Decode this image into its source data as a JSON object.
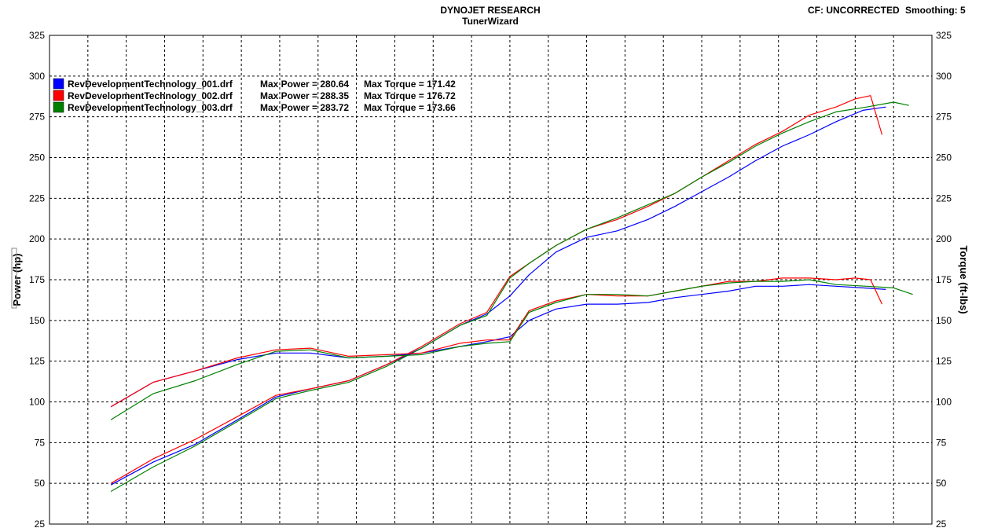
{
  "header": {
    "title_line1": "DYNOJET RESEARCH",
    "title_line2": "TunerWizard",
    "cf_label": "CF: UNCORRECTED",
    "smoothing_label": "Smoothing: 5"
  },
  "chart_data": {
    "type": "line",
    "title": "",
    "ylabel_left": "Power (hp)",
    "ylabel_right": "Torque (ft-lbs)",
    "xlabel": "",
    "ylim": [
      25,
      325
    ],
    "yticks": [
      25,
      50,
      75,
      100,
      125,
      150,
      175,
      200,
      225,
      250,
      275,
      300,
      325
    ],
    "xlim": [
      0,
      23
    ],
    "x_gridlines": 23,
    "grid": true,
    "legend_position": "top-left",
    "legend": [
      {
        "file": "RevDevelopmentTechnology_001.drf",
        "max_power_label": "Max Power = 280.64",
        "max_torque_label": "Max Torque = 171.42",
        "color": "#0000ff"
      },
      {
        "file": "RevDevelopmentTechnology_002.drf",
        "max_power_label": "Max Power = 288.35",
        "max_torque_label": "Max Torque = 176.72",
        "color": "#ff0000"
      },
      {
        "file": "RevDevelopmentTechnology_003.drf",
        "max_power_label": "Max Power = 283.72",
        "max_torque_label": "Max Torque = 173.66",
        "color": "#008000"
      }
    ],
    "series": [
      {
        "kind": "power",
        "color": "#0000ff",
        "points": [
          [
            1.6,
            49
          ],
          [
            2.7,
            63
          ],
          [
            3.8,
            74
          ],
          [
            4.9,
            89
          ],
          [
            5.9,
            103
          ],
          [
            6.8,
            108
          ],
          [
            7.8,
            113
          ],
          [
            8.8,
            123
          ],
          [
            9.7,
            133
          ],
          [
            10.7,
            147
          ],
          [
            11.4,
            154
          ],
          [
            12.0,
            165
          ],
          [
            12.5,
            178
          ],
          [
            13.2,
            192
          ],
          [
            14.0,
            201
          ],
          [
            14.8,
            205
          ],
          [
            15.6,
            212
          ],
          [
            16.3,
            220
          ],
          [
            17.0,
            229
          ],
          [
            17.7,
            238
          ],
          [
            18.4,
            248
          ],
          [
            19.1,
            257
          ],
          [
            19.8,
            264
          ],
          [
            20.5,
            272
          ],
          [
            21.2,
            279
          ],
          [
            21.8,
            281
          ]
        ]
      },
      {
        "kind": "power",
        "color": "#ff0000",
        "points": [
          [
            1.6,
            50
          ],
          [
            2.7,
            65
          ],
          [
            3.8,
            77
          ],
          [
            4.9,
            91
          ],
          [
            5.9,
            104
          ],
          [
            6.8,
            108
          ],
          [
            7.8,
            113
          ],
          [
            8.8,
            123
          ],
          [
            9.7,
            134
          ],
          [
            10.7,
            148
          ],
          [
            11.4,
            155
          ],
          [
            12.0,
            177
          ],
          [
            12.5,
            185
          ],
          [
            13.2,
            196
          ],
          [
            14.0,
            206
          ],
          [
            14.8,
            212
          ],
          [
            15.6,
            220
          ],
          [
            16.3,
            228
          ],
          [
            17.0,
            238
          ],
          [
            17.7,
            248
          ],
          [
            18.4,
            258
          ],
          [
            19.1,
            266
          ],
          [
            19.8,
            276
          ],
          [
            20.5,
            281
          ],
          [
            21.0,
            286
          ],
          [
            21.4,
            288
          ],
          [
            21.7,
            264
          ]
        ]
      },
      {
        "kind": "power",
        "color": "#008000",
        "points": [
          [
            1.6,
            45
          ],
          [
            2.7,
            60
          ],
          [
            3.8,
            73
          ],
          [
            4.9,
            88
          ],
          [
            5.9,
            102
          ],
          [
            6.8,
            107
          ],
          [
            7.8,
            112
          ],
          [
            8.8,
            122
          ],
          [
            9.7,
            133
          ],
          [
            10.7,
            147
          ],
          [
            11.4,
            153
          ],
          [
            12.0,
            176
          ],
          [
            12.5,
            185
          ],
          [
            13.2,
            196
          ],
          [
            14.0,
            206
          ],
          [
            14.8,
            213
          ],
          [
            15.6,
            221
          ],
          [
            16.3,
            228
          ],
          [
            17.0,
            238
          ],
          [
            17.7,
            247
          ],
          [
            18.4,
            257
          ],
          [
            19.1,
            265
          ],
          [
            19.8,
            272
          ],
          [
            20.5,
            278
          ],
          [
            21.3,
            281
          ],
          [
            22.0,
            284
          ],
          [
            22.4,
            282
          ]
        ]
      },
      {
        "kind": "torque",
        "color": "#0000ff",
        "points": [
          [
            1.6,
            97
          ],
          [
            2.7,
            112
          ],
          [
            3.8,
            119
          ],
          [
            4.9,
            126
          ],
          [
            5.9,
            130
          ],
          [
            6.8,
            130
          ],
          [
            7.8,
            127
          ],
          [
            8.8,
            128
          ],
          [
            9.7,
            130
          ],
          [
            10.7,
            134
          ],
          [
            11.4,
            137
          ],
          [
            12.0,
            140
          ],
          [
            12.5,
            150
          ],
          [
            13.2,
            157
          ],
          [
            14.0,
            160
          ],
          [
            14.8,
            160
          ],
          [
            15.6,
            161
          ],
          [
            16.3,
            164
          ],
          [
            17.0,
            166
          ],
          [
            17.7,
            168
          ],
          [
            18.4,
            171
          ],
          [
            19.1,
            171
          ],
          [
            19.8,
            172
          ],
          [
            20.5,
            171
          ],
          [
            21.2,
            170
          ],
          [
            21.8,
            169
          ]
        ]
      },
      {
        "kind": "torque",
        "color": "#ff0000",
        "points": [
          [
            1.6,
            97
          ],
          [
            2.7,
            112
          ],
          [
            3.8,
            119
          ],
          [
            4.9,
            127
          ],
          [
            5.9,
            132
          ],
          [
            6.8,
            133
          ],
          [
            7.8,
            128
          ],
          [
            8.8,
            129
          ],
          [
            9.7,
            130
          ],
          [
            10.7,
            136
          ],
          [
            11.4,
            138
          ],
          [
            12.0,
            138
          ],
          [
            12.5,
            156
          ],
          [
            13.2,
            162
          ],
          [
            14.0,
            166
          ],
          [
            14.8,
            165
          ],
          [
            15.6,
            165
          ],
          [
            16.3,
            168
          ],
          [
            17.0,
            171
          ],
          [
            17.7,
            174
          ],
          [
            18.4,
            174
          ],
          [
            19.1,
            176
          ],
          [
            19.8,
            176
          ],
          [
            20.5,
            175
          ],
          [
            21.0,
            176
          ],
          [
            21.4,
            175
          ],
          [
            21.7,
            160
          ]
        ]
      },
      {
        "kind": "torque",
        "color": "#008000",
        "points": [
          [
            1.6,
            89
          ],
          [
            2.7,
            105
          ],
          [
            3.8,
            113
          ],
          [
            4.9,
            123
          ],
          [
            5.9,
            131
          ],
          [
            6.8,
            132
          ],
          [
            7.8,
            127
          ],
          [
            8.8,
            128
          ],
          [
            9.7,
            129
          ],
          [
            10.7,
            134
          ],
          [
            11.4,
            136
          ],
          [
            12.0,
            137
          ],
          [
            12.5,
            155
          ],
          [
            13.2,
            161
          ],
          [
            14.0,
            166
          ],
          [
            14.8,
            166
          ],
          [
            15.6,
            165
          ],
          [
            16.3,
            168
          ],
          [
            17.0,
            171
          ],
          [
            17.7,
            173
          ],
          [
            18.4,
            174
          ],
          [
            19.1,
            174
          ],
          [
            19.8,
            175
          ],
          [
            20.5,
            172
          ],
          [
            21.3,
            171
          ],
          [
            22.0,
            170
          ],
          [
            22.5,
            166
          ]
        ]
      }
    ]
  }
}
